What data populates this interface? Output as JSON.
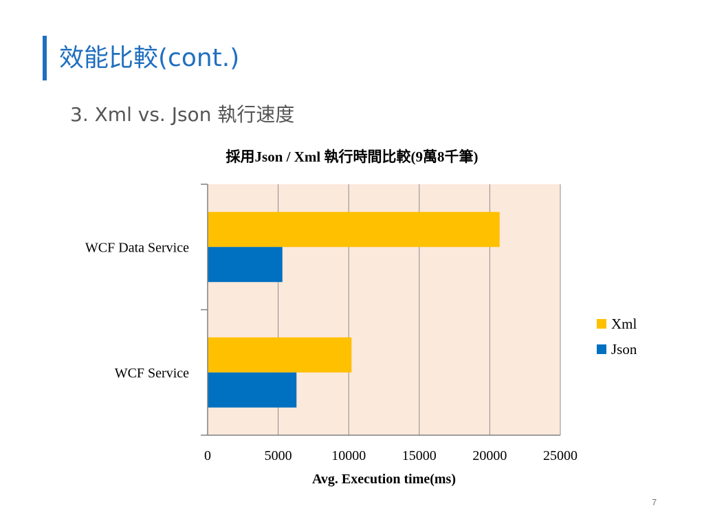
{
  "slide": {
    "title": "效能比較(cont.)",
    "subtitle": "3.  Xml vs. Json 執行速度",
    "page_number": "7"
  },
  "colors": {
    "accent": "#1f6fbf",
    "title_text": "#1f6fbf",
    "plot_background": "#fbe9dc",
    "xml_series": "#ffc000",
    "json_series": "#0070c0"
  },
  "chart_data": {
    "type": "bar",
    "orientation": "horizontal",
    "title": "採用Json / Xml 執行時間比較(9萬8千筆)",
    "xlabel": "Avg. Execution time(ms)",
    "ylabel": "",
    "categories": [
      "WCF Data Service",
      "WCF Service"
    ],
    "series": [
      {
        "name": "Xml",
        "values": [
          20700,
          10200
        ]
      },
      {
        "name": "Json",
        "values": [
          5300,
          6300
        ]
      }
    ],
    "xlim": [
      0,
      25000
    ],
    "xticks": [
      0,
      5000,
      10000,
      15000,
      20000,
      25000
    ],
    "grid": "vertical",
    "legend_position": "right"
  }
}
